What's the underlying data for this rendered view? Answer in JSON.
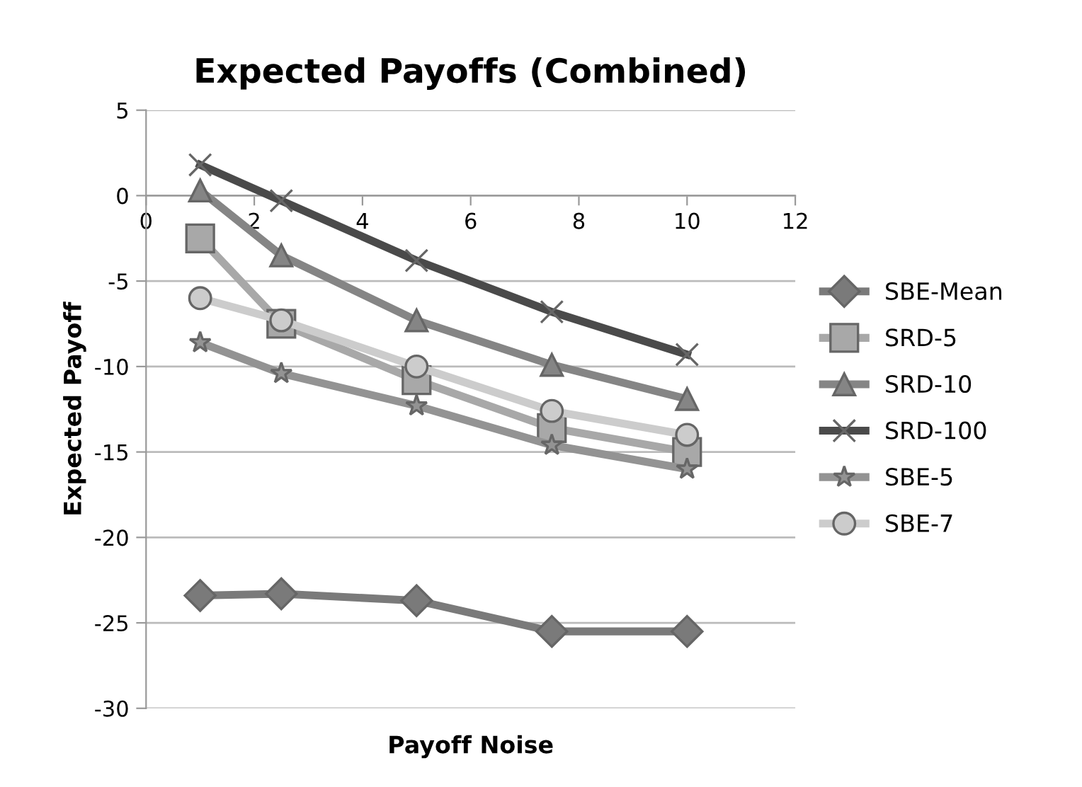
{
  "chart_data": {
    "type": "line",
    "title": "Expected Payoffs (Combined)",
    "xlabel": "Payoff Noise",
    "ylabel": "Expected Payoff",
    "x": [
      1,
      2.5,
      5,
      7.5,
      10
    ],
    "series": [
      {
        "name": "SBE-Mean",
        "color": "#7a7a7a",
        "marker": "diamond",
        "values": [
          -23.4,
          -23.3,
          -23.7,
          -25.5,
          -25.5
        ]
      },
      {
        "name": "SRD-5",
        "color": "#a8a8a8",
        "marker": "square",
        "values": [
          -2.5,
          -7.5,
          -10.8,
          -13.6,
          -15.0
        ]
      },
      {
        "name": "SRD-10",
        "color": "#858585",
        "marker": "triangle",
        "values": [
          0.3,
          -3.5,
          -7.3,
          -9.9,
          -11.9
        ]
      },
      {
        "name": "SRD-100",
        "color": "#4a4a4a",
        "marker": "cross",
        "values": [
          1.8,
          -0.3,
          -3.8,
          -6.8,
          -9.3
        ]
      },
      {
        "name": "SBE-5",
        "color": "#939393",
        "marker": "star",
        "values": [
          -8.6,
          -10.4,
          -12.3,
          -14.6,
          -16.0
        ]
      },
      {
        "name": "SBE-7",
        "color": "#cccccc",
        "marker": "circle",
        "values": [
          -6.0,
          -7.3,
          -10.0,
          -12.6,
          -14.0
        ]
      }
    ],
    "xlim": [
      0,
      12
    ],
    "xticks": [
      0,
      2,
      4,
      6,
      8,
      10,
      12
    ],
    "ylim": [
      -30,
      5
    ],
    "yticks": [
      -30,
      -25,
      -20,
      -15,
      -10,
      -5,
      0,
      5
    ],
    "grid": "y",
    "legend": "right"
  }
}
